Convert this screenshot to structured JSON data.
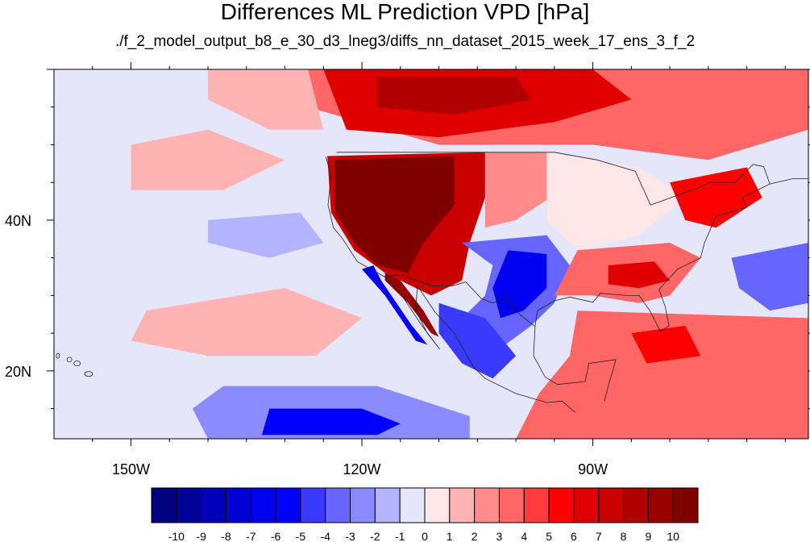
{
  "header": {
    "title": "Differences ML Prediction VPD [hPa]",
    "subtitle": "./f_2_model_output_b8_e_30_d3_lneg3/diffs_nn_dataset_2015_week_17_ens_3_f_2"
  },
  "map": {
    "projection": "cylindrical-equidistant",
    "lon_range": [
      -160,
      -62
    ],
    "lat_range": [
      11,
      60
    ],
    "lon_ticks": [
      {
        "lon": -150,
        "label": "150W"
      },
      {
        "lon": -120,
        "label": "120W"
      },
      {
        "lon": -90,
        "label": "90W"
      }
    ],
    "lat_ticks": [
      {
        "lat": 40,
        "label": "40N"
      },
      {
        "lat": 20,
        "label": "20N"
      }
    ],
    "background_value": -1,
    "regions": [
      {
        "name": "canada-warm-band",
        "value": 3,
        "points": [
          [
            -127,
            60
          ],
          [
            -62,
            60
          ],
          [
            -62,
            52
          ],
          [
            -75,
            48
          ],
          [
            -90,
            50
          ],
          [
            -110,
            50
          ],
          [
            -127,
            55
          ]
        ]
      },
      {
        "name": "canada-strong",
        "value": 6,
        "points": [
          [
            -125,
            60
          ],
          [
            -90,
            60
          ],
          [
            -85,
            56
          ],
          [
            -95,
            53
          ],
          [
            -110,
            51
          ],
          [
            -122,
            52
          ]
        ]
      },
      {
        "name": "canada-core",
        "value": 8,
        "points": [
          [
            -118,
            59
          ],
          [
            -100,
            59
          ],
          [
            -98,
            56
          ],
          [
            -108,
            54
          ],
          [
            -118,
            55
          ]
        ]
      },
      {
        "name": "north-pacific-pink",
        "value": 1,
        "points": [
          [
            -140,
            60
          ],
          [
            -127,
            60
          ],
          [
            -125,
            52
          ],
          [
            -132,
            52
          ],
          [
            -140,
            56
          ]
        ]
      },
      {
        "name": "west-us-hot",
        "value": 7,
        "points": [
          [
            -124.5,
            48.5
          ],
          [
            -104,
            49
          ],
          [
            -104,
            43
          ],
          [
            -106,
            37
          ],
          [
            -107,
            32
          ],
          [
            -111,
            30
          ],
          [
            -117,
            33
          ],
          [
            -121,
            36
          ],
          [
            -124,
            41
          ]
        ]
      },
      {
        "name": "west-us-core",
        "value": 10,
        "points": [
          [
            -123.5,
            48
          ],
          [
            -108,
            48.5
          ],
          [
            -108,
            42
          ],
          [
            -112,
            37
          ],
          [
            -114,
            33
          ],
          [
            -118,
            34
          ],
          [
            -121,
            37
          ],
          [
            -123.5,
            41
          ]
        ]
      },
      {
        "name": "baja-strip",
        "value": 9,
        "points": [
          [
            -117,
            33
          ],
          [
            -115,
            32
          ],
          [
            -112,
            28
          ],
          [
            -110,
            24.5
          ],
          [
            -111,
            25
          ],
          [
            -114,
            29
          ],
          [
            -117,
            32
          ]
        ]
      },
      {
        "name": "baja-coast-blue",
        "value": -6,
        "points": [
          [
            -118.5,
            34
          ],
          [
            -117.5,
            32
          ],
          [
            -113.5,
            26
          ],
          [
            -111.5,
            23.5
          ],
          [
            -113,
            24
          ],
          [
            -117,
            30
          ],
          [
            -120,
            33.5
          ]
        ]
      },
      {
        "name": "plains-pink",
        "value": 2,
        "points": [
          [
            -104,
            49
          ],
          [
            -96,
            49
          ],
          [
            -94,
            44
          ],
          [
            -100,
            40
          ],
          [
            -104,
            39
          ]
        ]
      },
      {
        "name": "texas-blue",
        "value": -4,
        "points": [
          [
            -107,
            37
          ],
          [
            -96,
            38
          ],
          [
            -93,
            34
          ],
          [
            -95,
            29
          ],
          [
            -98,
            26
          ],
          [
            -102,
            23
          ],
          [
            -106,
            22
          ],
          [
            -108,
            26
          ],
          [
            -104,
            30
          ],
          [
            -103,
            34
          ]
        ]
      },
      {
        "name": "texas-deep-blue",
        "value": -7,
        "points": [
          [
            -101,
            36
          ],
          [
            -96,
            35.5
          ],
          [
            -96,
            31
          ],
          [
            -99,
            28
          ],
          [
            -102,
            27
          ],
          [
            -103,
            31
          ]
        ]
      },
      {
        "name": "mexico-blue",
        "value": -5,
        "points": [
          [
            -110,
            29
          ],
          [
            -104,
            27
          ],
          [
            -100,
            22
          ],
          [
            -103,
            19
          ],
          [
            -107,
            21
          ],
          [
            -110,
            25
          ]
        ]
      },
      {
        "name": "midwest-white",
        "value": 0,
        "points": [
          [
            -96,
            49
          ],
          [
            -84,
            47
          ],
          [
            -78,
            43
          ],
          [
            -84,
            38
          ],
          [
            -92,
            36
          ],
          [
            -96,
            40
          ]
        ]
      },
      {
        "name": "southeast-pink",
        "value": 3,
        "points": [
          [
            -92,
            36
          ],
          [
            -80,
            37
          ],
          [
            -76,
            35
          ],
          [
            -80,
            30
          ],
          [
            -84,
            29
          ],
          [
            -90,
            30
          ],
          [
            -95,
            30
          ]
        ]
      },
      {
        "name": "southeast-red",
        "value": 6,
        "points": [
          [
            -88,
            34
          ],
          [
            -82,
            34.5
          ],
          [
            -80,
            32
          ],
          [
            -84,
            31
          ],
          [
            -88,
            31.5
          ]
        ]
      },
      {
        "name": "northeast-red",
        "value": 5,
        "points": [
          [
            -80,
            45
          ],
          [
            -70,
            47
          ],
          [
            -68,
            43
          ],
          [
            -74,
            39
          ],
          [
            -78,
            40
          ]
        ]
      },
      {
        "name": "atlantic-blue",
        "value": -4,
        "points": [
          [
            -72,
            35
          ],
          [
            -62,
            37
          ],
          [
            -62,
            29
          ],
          [
            -67,
            28
          ],
          [
            -71,
            31
          ]
        ]
      },
      {
        "name": "caribbean-pink",
        "value": 3,
        "points": [
          [
            -92,
            28
          ],
          [
            -62,
            27
          ],
          [
            -62,
            11
          ],
          [
            -100,
            11
          ],
          [
            -97,
            17
          ],
          [
            -93,
            22
          ]
        ]
      },
      {
        "name": "caribbean-red",
        "value": 5,
        "points": [
          [
            -85,
            25
          ],
          [
            -78,
            26
          ],
          [
            -76,
            22
          ],
          [
            -83,
            21
          ]
        ]
      },
      {
        "name": "pacific-blue-south",
        "value": -3,
        "points": [
          [
            -138,
            18
          ],
          [
            -118,
            18
          ],
          [
            -106,
            14
          ],
          [
            -106,
            11
          ],
          [
            -140,
            11
          ],
          [
            -142,
            15
          ]
        ]
      },
      {
        "name": "pacific-blue-core",
        "value": -6,
        "points": [
          [
            -132,
            15
          ],
          [
            -120,
            15
          ],
          [
            -115,
            13
          ],
          [
            -118,
            11.5
          ],
          [
            -133,
            11.5
          ]
        ]
      },
      {
        "name": "pacific-pink-band",
        "value": 1,
        "points": [
          [
            -148,
            28
          ],
          [
            -130,
            31
          ],
          [
            -120,
            27
          ],
          [
            -126,
            22
          ],
          [
            -140,
            22
          ],
          [
            -150,
            24
          ]
        ]
      },
      {
        "name": "pacific-blue-mid",
        "value": -2,
        "points": [
          [
            -140,
            40
          ],
          [
            -128,
            41
          ],
          [
            -125,
            37
          ],
          [
            -132,
            35
          ],
          [
            -140,
            37
          ]
        ]
      },
      {
        "name": "pacific-pink-north",
        "value": 1,
        "points": [
          [
            -150,
            50
          ],
          [
            -140,
            52
          ],
          [
            -130,
            48
          ],
          [
            -138,
            44
          ],
          [
            -150,
            44
          ]
        ]
      }
    ]
  },
  "colorbar": {
    "colors": [
      "#000080",
      "#00009a",
      "#0000b8",
      "#0000d6",
      "#0000f0",
      "#0000ff",
      "#3a3aff",
      "#6666ff",
      "#8b8bff",
      "#b3b3ff",
      "#e6e6fa",
      "#ffe6e6",
      "#ffb3b3",
      "#ff8b8b",
      "#ff6666",
      "#ff3a3a",
      "#ff0000",
      "#e00000",
      "#c80000",
      "#b00000",
      "#980000",
      "#800000"
    ],
    "labels": [
      "-10",
      "-9",
      "-8",
      "-7",
      "-6",
      "-5",
      "-4",
      "-3",
      "-2",
      "-1",
      "0",
      "1",
      "2",
      "3",
      "4",
      "5",
      "6",
      "7",
      "8",
      "9",
      "10"
    ]
  }
}
